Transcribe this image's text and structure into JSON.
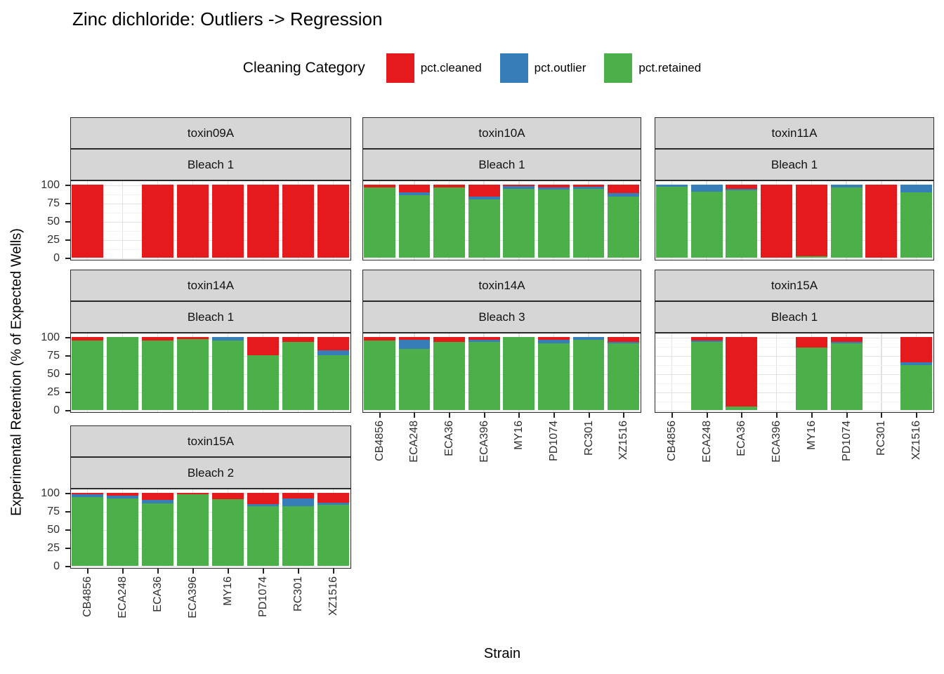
{
  "title": "Zinc dichloride: Outliers -> Regression",
  "legend": {
    "title": "Cleaning Category",
    "items": [
      {
        "label": "pct.cleaned",
        "color": "#E41A1C"
      },
      {
        "label": "pct.outlier",
        "color": "#377EB8"
      },
      {
        "label": "pct.retained",
        "color": "#4DAF4A"
      }
    ]
  },
  "axes": {
    "y_title": "Experimental Retention (% of Expected Wells)",
    "x_title": "Strain",
    "y_ticks": [
      100,
      75,
      50,
      25,
      0
    ]
  },
  "chart_data": {
    "type": "bar",
    "stacked": true,
    "ylim": [
      0,
      100
    ],
    "categories": [
      "CB4856",
      "ECA248",
      "ECA36",
      "ECA396",
      "MY16",
      "PD1074",
      "RC301",
      "XZ1516"
    ],
    "series_names": [
      "pct.cleaned",
      "pct.outlier",
      "pct.retained"
    ],
    "series_colors": {
      "cleaned": "#E41A1C",
      "outlier": "#377EB8",
      "retained": "#4DAF4A"
    },
    "legend_position": "top",
    "grid": true,
    "panels": [
      {
        "toxin": "toxin09A",
        "bleach": "Bleach 1",
        "row": 0,
        "col": 0,
        "y_axis": true,
        "x_axis": false,
        "bars": [
          {
            "strain": "CB4856",
            "cleaned": 100,
            "outlier": 0,
            "retained": 0
          },
          null,
          {
            "strain": "ECA36",
            "cleaned": 100,
            "outlier": 0,
            "retained": 0
          },
          {
            "strain": "ECA396",
            "cleaned": 100,
            "outlier": 0,
            "retained": 0
          },
          {
            "strain": "MY16",
            "cleaned": 100,
            "outlier": 0,
            "retained": 0
          },
          {
            "strain": "PD1074",
            "cleaned": 100,
            "outlier": 0,
            "retained": 0
          },
          {
            "strain": "RC301",
            "cleaned": 100,
            "outlier": 0,
            "retained": 0
          },
          {
            "strain": "XZ1516",
            "cleaned": 100,
            "outlier": 0,
            "retained": 0
          }
        ]
      },
      {
        "toxin": "toxin10A",
        "bleach": "Bleach 1",
        "row": 0,
        "col": 1,
        "y_axis": false,
        "x_axis": false,
        "bars": [
          {
            "strain": "CB4856",
            "cleaned": 4,
            "outlier": 0,
            "retained": 96
          },
          {
            "strain": "ECA248",
            "cleaned": 11,
            "outlier": 3,
            "retained": 86
          },
          {
            "strain": "ECA36",
            "cleaned": 4,
            "outlier": 0,
            "retained": 96
          },
          {
            "strain": "ECA396",
            "cleaned": 16,
            "outlier": 4,
            "retained": 80
          },
          {
            "strain": "MY16",
            "cleaned": 2,
            "outlier": 4,
            "retained": 94
          },
          {
            "strain": "PD1074",
            "cleaned": 4,
            "outlier": 3,
            "retained": 93
          },
          {
            "strain": "RC301",
            "cleaned": 3,
            "outlier": 3,
            "retained": 94
          },
          {
            "strain": "XZ1516",
            "cleaned": 12,
            "outlier": 4,
            "retained": 84
          }
        ]
      },
      {
        "toxin": "toxin11A",
        "bleach": "Bleach 1",
        "row": 0,
        "col": 2,
        "y_axis": false,
        "x_axis": false,
        "bars": [
          {
            "strain": "CB4856",
            "cleaned": 0,
            "outlier": 3,
            "retained": 97
          },
          {
            "strain": "ECA248",
            "cleaned": 0,
            "outlier": 10,
            "retained": 90
          },
          {
            "strain": "ECA36",
            "cleaned": 6,
            "outlier": 2,
            "retained": 92
          },
          {
            "strain": "ECA396",
            "cleaned": 100,
            "outlier": 0,
            "retained": 0
          },
          {
            "strain": "MY16",
            "cleaned": 98,
            "outlier": 0,
            "retained": 2
          },
          {
            "strain": "PD1074",
            "cleaned": 0,
            "outlier": 4,
            "retained": 96
          },
          {
            "strain": "RC301",
            "cleaned": 100,
            "outlier": 0,
            "retained": 0
          },
          {
            "strain": "XZ1516",
            "cleaned": 0,
            "outlier": 11,
            "retained": 89
          }
        ]
      },
      {
        "toxin": "toxin14A",
        "bleach": "Bleach 1",
        "row": 1,
        "col": 0,
        "y_axis": true,
        "x_axis": false,
        "bars": [
          {
            "strain": "CB4856",
            "cleaned": 5,
            "outlier": 0,
            "retained": 95
          },
          {
            "strain": "ECA248",
            "cleaned": 0,
            "outlier": 0,
            "retained": 100
          },
          {
            "strain": "ECA36",
            "cleaned": 5,
            "outlier": 0,
            "retained": 95
          },
          {
            "strain": "ECA396",
            "cleaned": 3,
            "outlier": 0,
            "retained": 97
          },
          {
            "strain": "MY16",
            "cleaned": 0,
            "outlier": 5,
            "retained": 95
          },
          {
            "strain": "PD1074",
            "cleaned": 25,
            "outlier": 0,
            "retained": 75
          },
          {
            "strain": "RC301",
            "cleaned": 7,
            "outlier": 0,
            "retained": 93
          },
          {
            "strain": "XZ1516",
            "cleaned": 18,
            "outlier": 7,
            "retained": 75
          }
        ]
      },
      {
        "toxin": "toxin14A",
        "bleach": "Bleach 3",
        "row": 1,
        "col": 1,
        "y_axis": false,
        "x_axis": true,
        "bars": [
          {
            "strain": "CB4856",
            "cleaned": 5,
            "outlier": 0,
            "retained": 95
          },
          {
            "strain": "ECA248",
            "cleaned": 4,
            "outlier": 12,
            "retained": 84
          },
          {
            "strain": "ECA36",
            "cleaned": 7,
            "outlier": 0,
            "retained": 93
          },
          {
            "strain": "ECA396",
            "cleaned": 4,
            "outlier": 3,
            "retained": 93
          },
          {
            "strain": "MY16",
            "cleaned": 0,
            "outlier": 0,
            "retained": 100
          },
          {
            "strain": "PD1074",
            "cleaned": 4,
            "outlier": 5,
            "retained": 91
          },
          {
            "strain": "RC301",
            "cleaned": 0,
            "outlier": 4,
            "retained": 96
          },
          {
            "strain": "XZ1516",
            "cleaned": 7,
            "outlier": 2,
            "retained": 91
          }
        ]
      },
      {
        "toxin": "toxin15A",
        "bleach": "Bleach 1",
        "row": 1,
        "col": 2,
        "y_axis": false,
        "x_axis": true,
        "bars": [
          null,
          {
            "strain": "ECA248",
            "cleaned": 5,
            "outlier": 2,
            "retained": 93
          },
          {
            "strain": "ECA36",
            "cleaned": 95,
            "outlier": 0,
            "retained": 5
          },
          null,
          {
            "strain": "MY16",
            "cleaned": 14,
            "outlier": 0,
            "retained": 86
          },
          {
            "strain": "PD1074",
            "cleaned": 7,
            "outlier": 2,
            "retained": 91
          },
          null,
          {
            "strain": "XZ1516",
            "cleaned": 35,
            "outlier": 3,
            "retained": 62
          }
        ]
      },
      {
        "toxin": "toxin15A",
        "bleach": "Bleach 2",
        "row": 2,
        "col": 0,
        "y_axis": true,
        "x_axis": true,
        "bars": [
          {
            "strain": "CB4856",
            "cleaned": 2,
            "outlier": 4,
            "retained": 94
          },
          {
            "strain": "ECA248",
            "cleaned": 4,
            "outlier": 4,
            "retained": 92
          },
          {
            "strain": "ECA36",
            "cleaned": 10,
            "outlier": 4,
            "retained": 86
          },
          {
            "strain": "ECA396",
            "cleaned": 2,
            "outlier": 0,
            "retained": 98
          },
          {
            "strain": "MY16",
            "cleaned": 9,
            "outlier": 0,
            "retained": 91
          },
          {
            "strain": "PD1074",
            "cleaned": 15,
            "outlier": 3,
            "retained": 82
          },
          {
            "strain": "RC301",
            "cleaned": 8,
            "outlier": 10,
            "retained": 82
          },
          {
            "strain": "XZ1516",
            "cleaned": 13,
            "outlier": 3,
            "retained": 84
          }
        ]
      }
    ]
  }
}
